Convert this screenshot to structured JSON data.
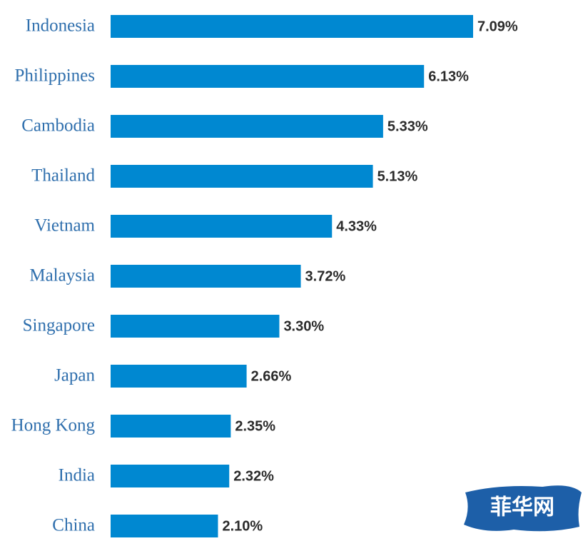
{
  "chart_data": {
    "type": "bar",
    "orientation": "horizontal",
    "categories": [
      "Indonesia",
      "Philippines",
      "Cambodia",
      "Thailand",
      "Vietnam",
      "Malaysia",
      "Singapore",
      "Japan",
      "Hong Kong",
      "India",
      "China"
    ],
    "values": [
      7.09,
      6.13,
      5.33,
      5.13,
      4.33,
      3.72,
      3.3,
      2.66,
      2.35,
      2.32,
      2.1
    ],
    "value_labels": [
      "7.09%",
      "6.13%",
      "5.33%",
      "5.13%",
      "4.33%",
      "3.72%",
      "3.30%",
      "2.66%",
      "2.35%",
      "2.32%",
      "2.10%"
    ],
    "color": "#0088d1"
  },
  "watermark": "菲华网"
}
